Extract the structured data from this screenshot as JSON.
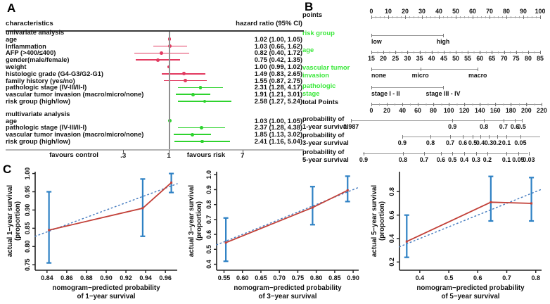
{
  "panels": {
    "a": "A",
    "b": "B",
    "c": "C"
  },
  "colors": {
    "forest_red": "#e23a60",
    "forest_green": "#2ed32e",
    "nomogram_label_green": "#3ce83c",
    "axis_gray": "#9a9a9a",
    "calibration_line_red": "#c24038",
    "calibration_errorbar_blue": "#2e81c4",
    "calibration_ideal_blue": "#4a7fc1"
  },
  "chart_data": [
    {
      "type": "forest",
      "col_left": "characteristics",
      "col_right": "hazard ratio (95% CI)",
      "xscale": "log",
      "xticks": [
        {
          "v": 0.3,
          "t": ".3"
        },
        {
          "v": 1,
          "t": "1"
        },
        {
          "v": 7,
          "t": "7"
        }
      ],
      "left_arrow_label": "favours control",
      "right_arrow_label": "favours risk",
      "rows": [
        {
          "type": "section",
          "label": "univariate analysis"
        },
        {
          "type": "item",
          "label": "age",
          "hr": 1.02,
          "lo": 1.0,
          "hi": 1.05,
          "text": "1.02 (1.00, 1.05)",
          "color": "red"
        },
        {
          "type": "item",
          "label": "Inflammation",
          "hr": 1.03,
          "lo": 0.66,
          "hi": 1.62,
          "text": "1.03 (0.66, 1.62)",
          "color": "red"
        },
        {
          "type": "item",
          "label": "AFP (>400/≤400)",
          "hr": 0.82,
          "lo": 0.4,
          "hi": 1.72,
          "text": "0.82 (0.40, 1.72)",
          "color": "red"
        },
        {
          "type": "item",
          "label": "gender(male/female)",
          "hr": 0.75,
          "lo": 0.42,
          "hi": 1.35,
          "text": "0.75 (0.42, 1.35)",
          "color": "red"
        },
        {
          "type": "item",
          "label": "weight",
          "hr": 1.0,
          "lo": 0.99,
          "hi": 1.02,
          "text": "1.00 (0.99, 1.02)",
          "color": "red"
        },
        {
          "type": "item",
          "label": "histologic grade (G4-G3/G2-G1)",
          "hr": 1.49,
          "lo": 0.83,
          "hi": 2.65,
          "text": "1.49 (0.83, 2.65)",
          "color": "red"
        },
        {
          "type": "item",
          "label": "family history (yes/no)",
          "hr": 1.55,
          "lo": 0.87,
          "hi": 2.75,
          "text": "1.55 (0.87, 2.75)",
          "color": "red"
        },
        {
          "type": "item",
          "label": "pathologic stage (IV-III/II-I)",
          "hr": 2.31,
          "lo": 1.28,
          "hi": 4.17,
          "text": "2.31 (1.28, 4.17)",
          "color": "green"
        },
        {
          "type": "item",
          "label": "vascular tumor invasion (macro/micro/none)",
          "hr": 1.91,
          "lo": 1.21,
          "hi": 3.01,
          "text": "1.91 (1.21, 3.01)",
          "color": "green"
        },
        {
          "type": "item",
          "label": "risk group (high/low)",
          "hr": 2.58,
          "lo": 1.27,
          "hi": 5.24,
          "text": "2.58 (1.27, 5.24)",
          "color": "green"
        },
        {
          "type": "gap"
        },
        {
          "type": "section",
          "label": "multivariate analysis"
        },
        {
          "type": "item",
          "label": "age",
          "hr": 1.03,
          "lo": 1.0,
          "hi": 1.05,
          "text": "1.03 (1.00, 1.05)",
          "color": "green"
        },
        {
          "type": "item",
          "label": "pathologic stage (IV-III/II-I)",
          "hr": 2.37,
          "lo": 1.28,
          "hi": 4.38,
          "text": "2.37 (1.28, 4.38)",
          "color": "green"
        },
        {
          "type": "item",
          "label": "vascular tumor invasion (macro/micro/none)",
          "hr": 1.85,
          "lo": 1.13,
          "hi": 3.02,
          "text": "1.85 (1.13, 3.02)",
          "color": "green"
        },
        {
          "type": "item",
          "label": "risk group (high/low)",
          "hr": 2.41,
          "lo": 1.16,
          "hi": 5.04,
          "text": "2.41 (1.16, 5.04)",
          "color": "green"
        }
      ]
    },
    {
      "type": "nomogram",
      "axes": [
        {
          "name": "points",
          "labels": [
            "points"
          ],
          "label_color": "black",
          "side": "above",
          "start": 0,
          "end": 100,
          "minor": 2.5,
          "ticks": [
            {
              "p": 0,
              "t": "0"
            },
            {
              "p": 10,
              "t": "10"
            },
            {
              "p": 20,
              "t": "20"
            },
            {
              "p": 30,
              "t": "30"
            },
            {
              "p": 40,
              "t": "40"
            },
            {
              "p": 50,
              "t": "50"
            },
            {
              "p": 60,
              "t": "60"
            },
            {
              "p": 70,
              "t": "70"
            },
            {
              "p": 80,
              "t": "80"
            },
            {
              "p": 90,
              "t": "90"
            },
            {
              "p": 100,
              "t": "100"
            }
          ]
        },
        {
          "name": "risk-group",
          "labels": [
            "risk group"
          ],
          "label_color": "green",
          "side": "below",
          "start": 0,
          "end": 42.5,
          "ticks": [
            {
              "p": 0,
              "t": "low",
              "align": "left"
            },
            {
              "p": 42.5,
              "t": "high"
            }
          ]
        },
        {
          "name": "age",
          "labels": [
            "age"
          ],
          "label_color": "green",
          "side": "below",
          "start": 0,
          "end": 100,
          "minor": 3.57,
          "ticks": [
            {
              "p": 0,
              "t": "15"
            },
            {
              "p": 7.1,
              "t": "20"
            },
            {
              "p": 14.3,
              "t": "25"
            },
            {
              "p": 21.4,
              "t": "30"
            },
            {
              "p": 28.6,
              "t": "35"
            },
            {
              "p": 35.7,
              "t": "40"
            },
            {
              "p": 42.9,
              "t": "45"
            },
            {
              "p": 50,
              "t": "50"
            },
            {
              "p": 57.1,
              "t": "55"
            },
            {
              "p": 64.3,
              "t": "60"
            },
            {
              "p": 71.4,
              "t": "65"
            },
            {
              "p": 78.6,
              "t": "70"
            },
            {
              "p": 85.7,
              "t": "75"
            },
            {
              "p": 92.9,
              "t": "80"
            },
            {
              "p": 100,
              "t": "85"
            }
          ]
        },
        {
          "name": "vascular-tumor-invasion",
          "labels": [
            "vascular tumor",
            "invasion"
          ],
          "label_color": "green",
          "side": "below",
          "start": 0,
          "end": 63,
          "ticks": [
            {
              "p": 0,
              "t": "none",
              "align": "left"
            },
            {
              "p": 29,
              "t": "micro"
            },
            {
              "p": 63,
              "t": "macro"
            }
          ]
        },
        {
          "name": "pathologic-stage",
          "labels": [
            "pathologic",
            "stage"
          ],
          "label_color": "green",
          "side": "below",
          "start": 0,
          "end": 42.5,
          "ticks": [
            {
              "p": 0,
              "t": "stage I - II",
              "align": "left"
            },
            {
              "p": 42.5,
              "t": "stage III - IV"
            }
          ]
        },
        {
          "name": "total-points",
          "labels": [
            "total Points"
          ],
          "label_color": "black",
          "side": "below",
          "start": 0,
          "end": 101,
          "minor": 4.6,
          "ticks": [
            {
              "p": 0,
              "t": "0"
            },
            {
              "p": 9.2,
              "t": "20"
            },
            {
              "p": 18.4,
              "t": "40"
            },
            {
              "p": 27.5,
              "t": "60"
            },
            {
              "p": 36.7,
              "t": "80"
            },
            {
              "p": 45.9,
              "t": "100"
            },
            {
              "p": 55.1,
              "t": "120"
            },
            {
              "p": 64.3,
              "t": "140"
            },
            {
              "p": 73.4,
              "t": "160"
            },
            {
              "p": 82.6,
              "t": "180"
            },
            {
              "p": 91.8,
              "t": "200"
            },
            {
              "p": 101,
              "t": "220"
            }
          ]
        },
        {
          "name": "prob-1yr-survival",
          "labels": [
            "probability of",
            "1-year survival"
          ],
          "label_color": "black",
          "side": "below",
          "start": -12,
          "end": 89,
          "ticks": [
            {
              "p": -12,
              "t": "0.987"
            },
            {
              "p": 48,
              "t": "0.9"
            },
            {
              "p": 66.7,
              "t": "0.8"
            },
            {
              "p": 78.3,
              "t": "0.7"
            },
            {
              "p": 85,
              "t": "0.6"
            },
            {
              "p": 89,
              "t": "0.5"
            }
          ]
        },
        {
          "name": "prob-3yr-survival",
          "labels": [
            "probability of",
            "3-year survival"
          ],
          "label_color": "black",
          "side": "below",
          "start": 18.3,
          "end": 100,
          "ticks": [
            {
              "p": 18.3,
              "t": "0.9"
            },
            {
              "p": 35,
              "t": "0.8"
            },
            {
              "p": 46.7,
              "t": "0.7"
            },
            {
              "p": 54.2,
              "t": "0.6"
            },
            {
              "p": 60,
              "t": "0.5"
            },
            {
              "p": 64.6,
              "t": "0.4"
            },
            {
              "p": 69.6,
              "t": "0.3"
            },
            {
              "p": 74.6,
              "t": "0.2"
            },
            {
              "p": 80,
              "t": "0.1"
            },
            {
              "p": 88.3,
              "t": "0.05"
            }
          ]
        },
        {
          "name": "prob-5yr-survival",
          "labels": [
            "probability of",
            "5-year survival"
          ],
          "label_color": "black",
          "side": "below",
          "start": -5,
          "end": 93,
          "ticks": [
            {
              "p": -4.6,
              "t": "0.9"
            },
            {
              "p": 18.7,
              "t": "0.8"
            },
            {
              "p": 31.2,
              "t": "0.7"
            },
            {
              "p": 41.2,
              "t": "0.6"
            },
            {
              "p": 48,
              "t": "0.5"
            },
            {
              "p": 55,
              "t": "0.4"
            },
            {
              "p": 62,
              "t": "0.3"
            },
            {
              "p": 68.7,
              "t": "0.2"
            },
            {
              "p": 80,
              "t": "0.1"
            },
            {
              "p": 87,
              "t": "0.05"
            },
            {
              "p": 93.3,
              "t": "0.03"
            }
          ]
        }
      ]
    },
    {
      "type": "line",
      "name": "calibration-1-year",
      "xlabel": [
        "nomogram−predicted probability",
        "of 1−year survival"
      ],
      "ylabel": [
        "actual 1−year survival",
        "(proportion)"
      ],
      "xlim": [
        0.828,
        0.972
      ],
      "ylim": [
        0.735,
        1.005
      ],
      "xticks": [
        "0.84",
        "0.86",
        "0.88",
        "0.90",
        "0.92",
        "0.94",
        "0.96"
      ],
      "yticks": [
        "0.75",
        "0.80",
        "0.85",
        "0.90",
        "0.95",
        "1.00"
      ],
      "points": [
        {
          "x": 0.842,
          "y": 0.845,
          "lo": 0.755,
          "hi": 0.95
        },
        {
          "x": 0.937,
          "y": 0.905,
          "lo": 0.828,
          "hi": 0.985
        },
        {
          "x": 0.966,
          "y": 0.975,
          "lo": 0.948,
          "hi": 1.0
        }
      ]
    },
    {
      "type": "line",
      "name": "calibration-3-year",
      "xlabel": [
        "nomogram−predicted probability",
        "of 3−year survival"
      ],
      "ylabel": [
        "actual 3−year survival",
        "(proportion)"
      ],
      "xlim": [
        0.53,
        0.915
      ],
      "ylim": [
        0.36,
        1.02
      ],
      "xticks": [
        "0.55",
        "0.60",
        "0.65",
        "0.70",
        "0.75",
        "0.80",
        "0.85",
        "0.90"
      ],
      "yticks": [
        "0.4",
        "0.5",
        "0.6",
        "0.7",
        "0.8",
        "0.9",
        "1.0"
      ],
      "points": [
        {
          "x": 0.555,
          "y": 0.545,
          "lo": 0.42,
          "hi": 0.71
        },
        {
          "x": 0.79,
          "y": 0.78,
          "lo": 0.665,
          "hi": 0.92
        },
        {
          "x": 0.885,
          "y": 0.895,
          "lo": 0.82,
          "hi": 0.99
        }
      ]
    },
    {
      "type": "line",
      "name": "calibration-5-year",
      "xlabel": [
        "nomogram−predicted probability",
        "of 5−year survival"
      ],
      "ylabel": [
        "actual 5−year survival",
        "(proportion)"
      ],
      "xlim": [
        0.33,
        0.82
      ],
      "ylim": [
        0.13,
        0.97
      ],
      "xticks": [
        "0.4",
        "0.5",
        "0.6",
        "0.7",
        "0.8"
      ],
      "yticks": [
        "0.2",
        "0.4",
        "0.6",
        "0.8"
      ],
      "points": [
        {
          "x": 0.355,
          "y": 0.375,
          "lo": 0.24,
          "hi": 0.6
        },
        {
          "x": 0.645,
          "y": 0.71,
          "lo": 0.55,
          "hi": 0.93
        },
        {
          "x": 0.785,
          "y": 0.7,
          "lo": 0.55,
          "hi": 0.92
        }
      ]
    }
  ]
}
